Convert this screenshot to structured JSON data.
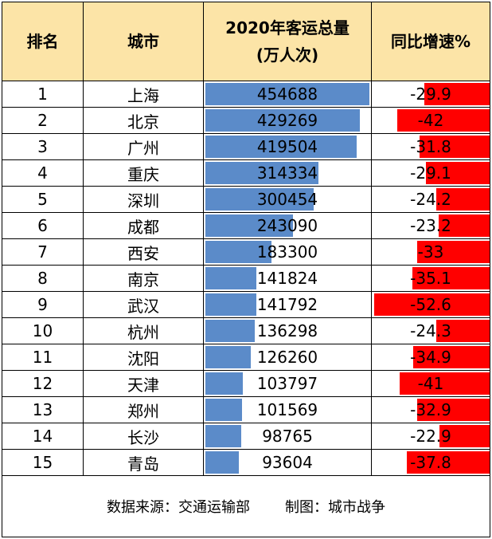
{
  "headers": {
    "rank": "排名",
    "city": "城市",
    "volume_line1": "2020年客运总量",
    "volume_line2": "(万人次)",
    "growth": "同比增速%"
  },
  "chart_data": {
    "type": "table",
    "columns": [
      "排名",
      "城市",
      "2020年客运总量(万人次)",
      "同比增速%"
    ],
    "rows": [
      {
        "rank": "1",
        "city": "上海",
        "volume": 454688,
        "growth": -29.9
      },
      {
        "rank": "2",
        "city": "北京",
        "volume": 429269,
        "growth": -42
      },
      {
        "rank": "3",
        "city": "广州",
        "volume": 419504,
        "growth": -31.8
      },
      {
        "rank": "4",
        "city": "重庆",
        "volume": 314334,
        "growth": -29.1
      },
      {
        "rank": "5",
        "city": "深圳",
        "volume": 300454,
        "growth": -24.2
      },
      {
        "rank": "6",
        "city": "成都",
        "volume": 243090,
        "growth": -23.2
      },
      {
        "rank": "7",
        "city": "西安",
        "volume": 183300,
        "growth": -33
      },
      {
        "rank": "8",
        "city": "南京",
        "volume": 141824,
        "growth": -35.1
      },
      {
        "rank": "9",
        "city": "武汉",
        "volume": 141792,
        "growth": -52.6
      },
      {
        "rank": "10",
        "city": "杭州",
        "volume": 136298,
        "growth": -24.3
      },
      {
        "rank": "11",
        "city": "沈阳",
        "volume": 126260,
        "growth": -34.9
      },
      {
        "rank": "12",
        "city": "天津",
        "volume": 103797,
        "growth": -41
      },
      {
        "rank": "13",
        "city": "郑州",
        "volume": 101569,
        "growth": -32.9
      },
      {
        "rank": "14",
        "city": "长沙",
        "volume": 98765,
        "growth": -22.9
      },
      {
        "rank": "15",
        "city": "青岛",
        "volume": 93604,
        "growth": -37.8
      }
    ],
    "volume_bar_color": "#5b8bc9",
    "growth_bar_color": "#ff0000"
  },
  "footer": {
    "source": "数据来源：交通运输部",
    "credit": "制图：城市战争"
  },
  "colors": {
    "header_bg": "#fce4a7"
  }
}
